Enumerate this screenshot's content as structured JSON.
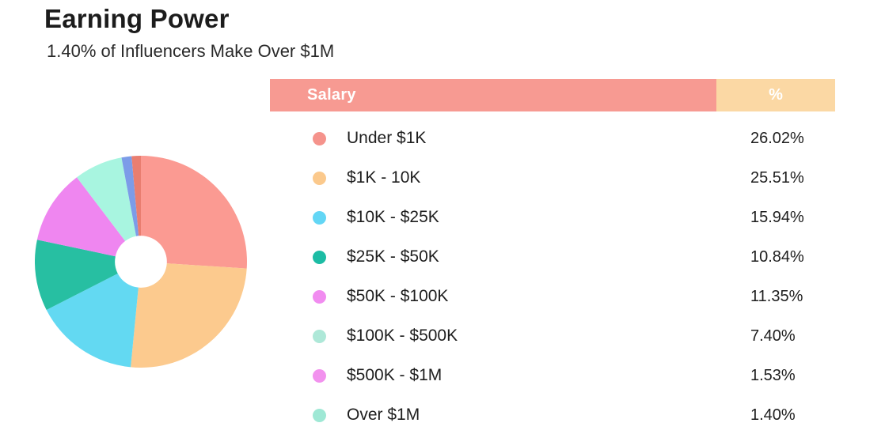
{
  "page": {
    "title": "Earning Power",
    "subtitle": "1.40% of Influencers Make Over $1M"
  },
  "table": {
    "headers": {
      "salary": "Salary",
      "percent": "%"
    },
    "header_colors": {
      "salary_bg": "#F79A92",
      "percent_bg": "#FBD8A4",
      "text": "#FFFFFF"
    },
    "rows": [
      {
        "label": "Under $1K",
        "value": "26.02%",
        "dot_color": "#F5938C"
      },
      {
        "label": "$1K - 10K",
        "value": "25.51%",
        "dot_color": "#FBC98C"
      },
      {
        "label": "$10K - $25K",
        "value": "15.94%",
        "dot_color": "#63D6F5"
      },
      {
        "label": "$25K - $50K",
        "value": "10.84%",
        "dot_color": "#1CBCA4"
      },
      {
        "label": "$50K - $100K",
        "value": "11.35%",
        "dot_color": "#F18CF0"
      },
      {
        "label": "$100K - $500K",
        "value": "7.40%",
        "dot_color": "#AEE8D8"
      },
      {
        "label": "$500K - $1M",
        "value": "1.53%",
        "dot_color": "#F292EE"
      },
      {
        "label": "Over $1M",
        "value": "1.40%",
        "dot_color": "#9FE8D5"
      }
    ]
  },
  "chart_data": {
    "type": "pie",
    "subtype": "donut",
    "title": "Earning Power",
    "categories": [
      "Under $1K",
      "$1K - 10K",
      "$10K - $25K",
      "$25K - $50K",
      "$50K - $100K",
      "$100K - $500K",
      "$500K - $1M",
      "Over $1M"
    ],
    "values": [
      26.02,
      25.51,
      15.94,
      10.84,
      11.35,
      7.4,
      1.53,
      1.4
    ],
    "unit": "%",
    "slice_colors": [
      "#FB9A92",
      "#FCCA8E",
      "#63D9F2",
      "#27BFA2",
      "#EF86F0",
      "#A8F5E0",
      "#7C9CE8",
      "#E97E70"
    ],
    "start_angle_deg": -90,
    "direction": "clockwise",
    "inner_radius_ratio": 0.245,
    "legend_position": "right-table"
  }
}
